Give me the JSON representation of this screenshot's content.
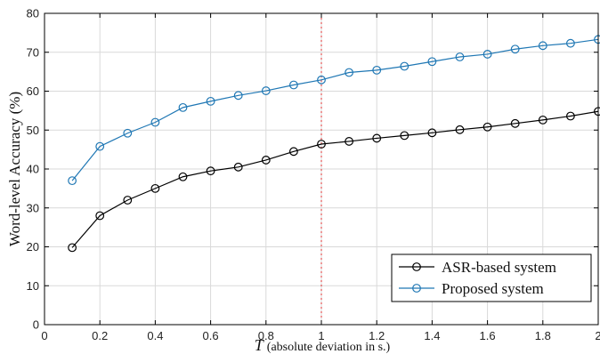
{
  "chart_data": {
    "type": "line",
    "title": "",
    "xlabel": {
      "symbol": "T",
      "text": "(absolute deviation in s.)"
    },
    "ylabel": "Word-level Accuracy (%)",
    "xlim": [
      0,
      2
    ],
    "ylim": [
      0,
      80
    ],
    "x_ticks": [
      0,
      0.2,
      0.4,
      0.6,
      0.8,
      1,
      1.2,
      1.4,
      1.6,
      1.8,
      2
    ],
    "x_tick_labels": [
      "0",
      "0.2",
      "0.4",
      "0.6",
      "0.8",
      "1",
      "1.2",
      "1.4",
      "1.6",
      "1.8",
      "2"
    ],
    "y_ticks": [
      0,
      10,
      20,
      30,
      40,
      50,
      60,
      70,
      80
    ],
    "y_tick_labels": [
      "0",
      "10",
      "20",
      "30",
      "40",
      "50",
      "60",
      "70",
      "80"
    ],
    "grid": true,
    "legend_position": "bottom-right",
    "x": [
      0.1,
      0.2,
      0.3,
      0.4,
      0.5,
      0.6,
      0.7,
      0.8,
      0.9,
      1.0,
      1.1,
      1.2,
      1.3,
      1.4,
      1.5,
      1.6,
      1.7,
      1.8,
      1.9,
      2.0
    ],
    "series": [
      {
        "name": "ASR-based system",
        "color": "#000000",
        "marker": "circle",
        "values": [
          19.8,
          28.0,
          32.0,
          35.0,
          38.0,
          39.5,
          40.5,
          42.3,
          44.5,
          46.4,
          47.1,
          47.9,
          48.6,
          49.3,
          50.1,
          50.8,
          51.7,
          52.6,
          53.6,
          54.8
        ]
      },
      {
        "name": "Proposed system",
        "color": "#1f77b4",
        "marker": "circle",
        "values": [
          37.0,
          45.8,
          49.2,
          52.0,
          55.8,
          57.4,
          58.9,
          60.1,
          61.6,
          62.9,
          64.8,
          65.4,
          66.4,
          67.6,
          68.8,
          69.5,
          70.8,
          71.7,
          72.3,
          73.3
        ]
      }
    ],
    "reference_line": {
      "x": 1,
      "color": "#e03030",
      "style": "dotted"
    }
  }
}
